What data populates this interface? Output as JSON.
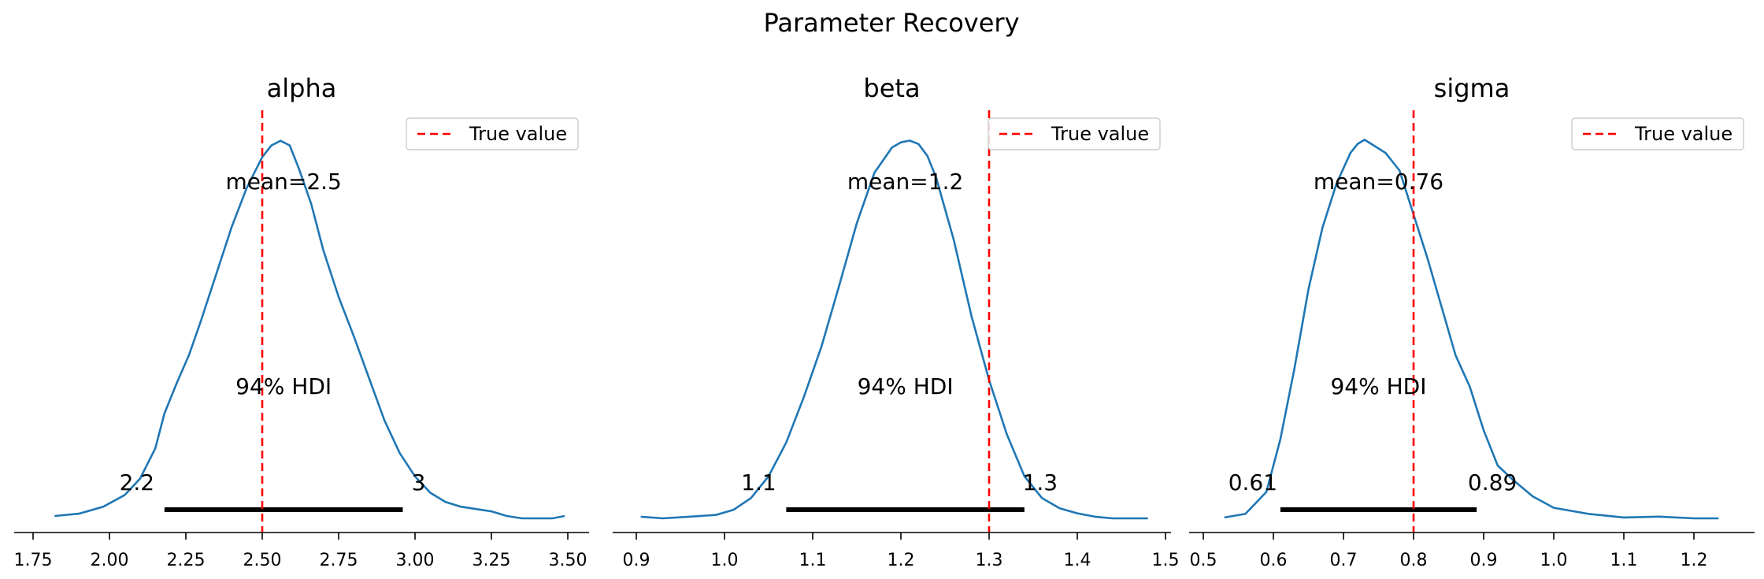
{
  "suptitle": "Parameter Recovery",
  "legend_label": "True value",
  "colors": {
    "kde": "#1f77b4",
    "true_line": "#ff0000",
    "hdi": "#000000",
    "axis": "#000000",
    "legend_border": "#cccccc"
  },
  "chart_data": [
    {
      "type": "line",
      "title": "alpha",
      "xlim": [
        1.75,
        3.52
      ],
      "xticks": [
        1.75,
        2.0,
        2.25,
        2.5,
        2.75,
        3.0,
        3.25,
        3.5
      ],
      "xtick_labels": [
        "1.75",
        "2.00",
        "2.25",
        "2.50",
        "2.75",
        "3.00",
        "3.25",
        "3.50"
      ],
      "x": [
        1.82,
        1.9,
        1.98,
        2.05,
        2.1,
        2.15,
        2.18,
        2.22,
        2.26,
        2.3,
        2.35,
        2.4,
        2.45,
        2.5,
        2.53,
        2.56,
        2.59,
        2.62,
        2.66,
        2.7,
        2.75,
        2.8,
        2.85,
        2.9,
        2.95,
        3.0,
        3.05,
        3.1,
        3.15,
        3.2,
        3.25,
        3.3,
        3.35,
        3.4,
        3.45,
        3.49
      ],
      "density": [
        0.01,
        0.02,
        0.05,
        0.1,
        0.17,
        0.3,
        0.45,
        0.58,
        0.7,
        0.85,
        1.05,
        1.25,
        1.42,
        1.55,
        1.6,
        1.62,
        1.6,
        1.5,
        1.35,
        1.15,
        0.95,
        0.78,
        0.6,
        0.42,
        0.28,
        0.18,
        0.11,
        0.07,
        0.05,
        0.04,
        0.03,
        0.01,
        0.0,
        0.0,
        0.0,
        0.01
      ],
      "ymax": 1.7,
      "true_value": 2.5,
      "mean_label": "mean=2.5",
      "hdi": [
        2.18,
        2.96
      ],
      "hdi_label": "94% HDI",
      "hdi_low_label": "2.2",
      "hdi_high_label": "3",
      "legend_loc": "upper right"
    },
    {
      "type": "line",
      "title": "beta",
      "xlim": [
        0.885,
        1.5
      ],
      "xticks": [
        0.9,
        1.0,
        1.1,
        1.2,
        1.3,
        1.4,
        1.5
      ],
      "xtick_labels": [
        "0.9",
        "1.0",
        "1.1",
        "1.2",
        "1.3",
        "1.4",
        "1.5"
      ],
      "x": [
        0.905,
        0.93,
        0.96,
        0.99,
        1.01,
        1.03,
        1.05,
        1.07,
        1.09,
        1.11,
        1.13,
        1.15,
        1.17,
        1.19,
        1.2,
        1.21,
        1.22,
        1.23,
        1.24,
        1.26,
        1.28,
        1.3,
        1.32,
        1.34,
        1.36,
        1.38,
        1.4,
        1.42,
        1.44,
        1.46,
        1.48
      ],
      "density": [
        0.01,
        0.0,
        0.01,
        0.02,
        0.05,
        0.12,
        0.25,
        0.45,
        0.72,
        1.02,
        1.38,
        1.75,
        2.05,
        2.2,
        2.23,
        2.24,
        2.22,
        2.15,
        2.02,
        1.65,
        1.2,
        0.82,
        0.5,
        0.25,
        0.12,
        0.06,
        0.03,
        0.01,
        0.0,
        0.0,
        0.0
      ],
      "ymax": 2.35,
      "true_value": 1.3,
      "mean_label": "mean=1.2",
      "hdi": [
        1.07,
        1.34
      ],
      "hdi_label": "94% HDI",
      "hdi_low_label": "1.1",
      "hdi_high_label": "1.3",
      "legend_loc": "upper right"
    },
    {
      "type": "line",
      "title": "sigma",
      "xlim": [
        0.515,
        1.255
      ],
      "xticks": [
        0.5,
        0.6,
        0.7,
        0.8,
        0.9,
        1.0,
        1.1,
        1.2
      ],
      "xtick_labels": [
        "0.5",
        "0.6",
        "0.7",
        "0.8",
        "0.9",
        "1.0",
        "1.1",
        "1.2"
      ],
      "x": [
        0.53,
        0.56,
        0.59,
        0.61,
        0.63,
        0.65,
        0.67,
        0.69,
        0.71,
        0.72,
        0.73,
        0.74,
        0.76,
        0.78,
        0.8,
        0.82,
        0.84,
        0.86,
        0.88,
        0.9,
        0.92,
        0.94,
        0.97,
        1.0,
        1.05,
        1.1,
        1.15,
        1.2,
        1.235
      ],
      "density": [
        0.01,
        0.05,
        0.3,
        0.9,
        1.7,
        2.6,
        3.3,
        3.8,
        4.15,
        4.25,
        4.3,
        4.25,
        4.15,
        3.95,
        3.45,
        2.95,
        2.4,
        1.85,
        1.5,
        1.0,
        0.6,
        0.45,
        0.25,
        0.12,
        0.05,
        0.01,
        0.02,
        0.0,
        0.0
      ],
      "ymax": 4.5,
      "true_value": 0.8,
      "mean_label": "mean=0.76",
      "hdi": [
        0.61,
        0.89
      ],
      "hdi_label": "94% HDI",
      "hdi_low_label": "0.61",
      "hdi_high_label": "0.89",
      "legend_loc": "upper right"
    }
  ]
}
